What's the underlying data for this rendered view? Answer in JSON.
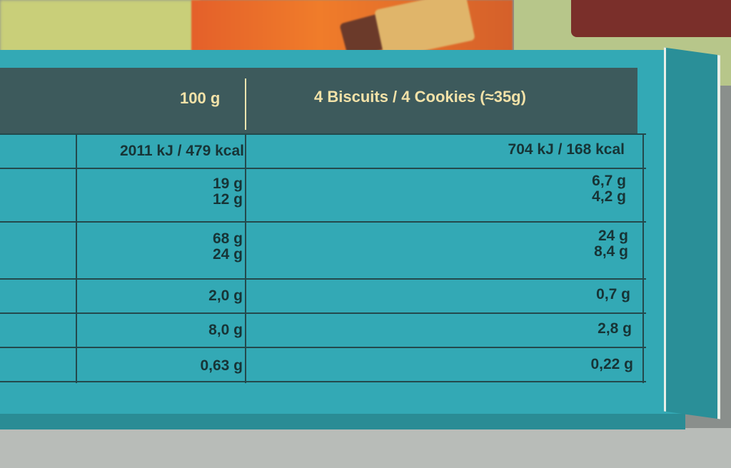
{
  "header": {
    "col_100g": "100 g",
    "col_portion": "4 Biscuits / 4 Cookies (≈35g)"
  },
  "rows": [
    {
      "per100": [
        "2011 kJ / 479 kcal"
      ],
      "portion": [
        "704 kJ / 168 kcal"
      ]
    },
    {
      "per100": [
        "19 g",
        "12 g"
      ],
      "portion": [
        "6,7 g",
        "4,2 g"
      ]
    },
    {
      "per100": [
        "68 g",
        "24 g"
      ],
      "portion": [
        "24 g",
        "8,4 g"
      ]
    },
    {
      "per100": [
        "2,0 g"
      ],
      "portion": [
        "0,7 g"
      ]
    },
    {
      "per100": [
        "8,0 g"
      ],
      "portion": [
        "2,8 g"
      ]
    },
    {
      "per100": [
        "0,63 g"
      ],
      "portion": [
        "0,22 g"
      ]
    }
  ],
  "colors": {
    "box": "#33a9b5",
    "header": "#3d5a5c",
    "header_text": "#f3e2a8"
  }
}
